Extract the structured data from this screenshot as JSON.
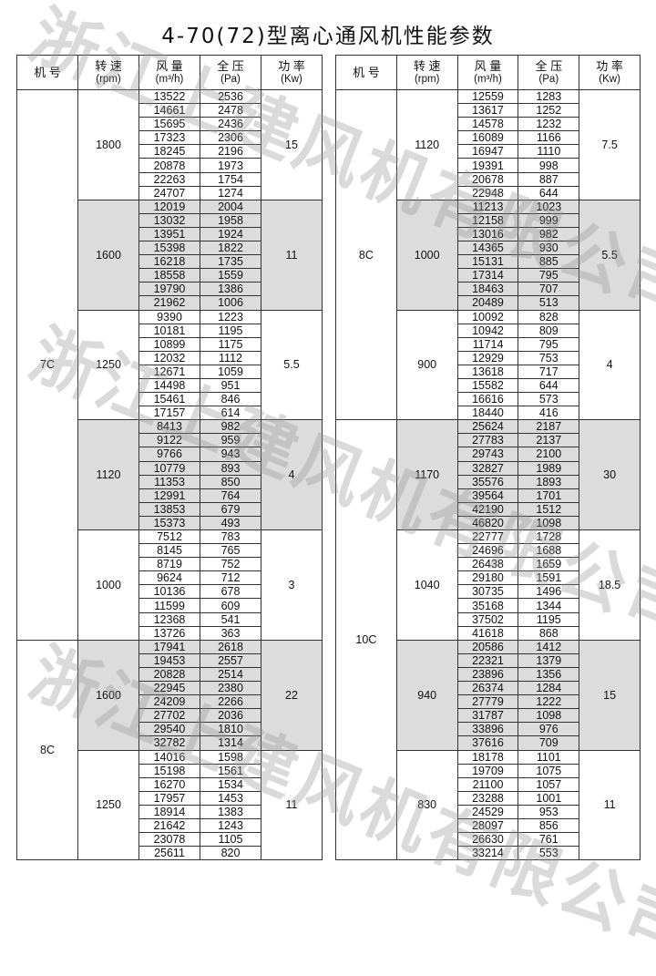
{
  "title": "4-70(72)型离心通风机性能参数",
  "watermark": "浙江上建风机有限公司",
  "headers": {
    "model": "机 号",
    "speed": "转 速",
    "speed_unit": "(rpm)",
    "flow": "风 量",
    "flow_unit": "(m³/h)",
    "pressure": "全 压",
    "pressure_unit": "(Pa)",
    "power": "功 率",
    "power_unit": "(Kw)"
  },
  "colors": {
    "shade": "#dcdcdc",
    "border": "#333333"
  },
  "tables": [
    {
      "models": [
        {
          "model": "7C",
          "speeds": [
            {
              "rpm": "1800",
              "power": "15",
              "shaded": false,
              "rows": [
                [
                  "13522",
                  "2536"
                ],
                [
                  "14661",
                  "2478"
                ],
                [
                  "15695",
                  "2436"
                ],
                [
                  "17323",
                  "2306"
                ],
                [
                  "18245",
                  "2196"
                ],
                [
                  "20878",
                  "1973"
                ],
                [
                  "22263",
                  "1754"
                ],
                [
                  "24707",
                  "1274"
                ]
              ]
            },
            {
              "rpm": "1600",
              "power": "11",
              "shaded": true,
              "rows": [
                [
                  "12019",
                  "2004"
                ],
                [
                  "13032",
                  "1958"
                ],
                [
                  "13951",
                  "1924"
                ],
                [
                  "15398",
                  "1822"
                ],
                [
                  "16218",
                  "1735"
                ],
                [
                  "18558",
                  "1559"
                ],
                [
                  "19790",
                  "1386"
                ],
                [
                  "21962",
                  "1006"
                ]
              ]
            },
            {
              "rpm": "1250",
              "power": "5.5",
              "shaded": false,
              "rows": [
                [
                  "9390",
                  "1223"
                ],
                [
                  "10181",
                  "1195"
                ],
                [
                  "10899",
                  "1175"
                ],
                [
                  "12032",
                  "1112"
                ],
                [
                  "12671",
                  "1059"
                ],
                [
                  "14498",
                  "951"
                ],
                [
                  "15461",
                  "846"
                ],
                [
                  "17157",
                  "614"
                ]
              ]
            },
            {
              "rpm": "1120",
              "power": "4",
              "shaded": true,
              "rows": [
                [
                  "8413",
                  "982"
                ],
                [
                  "9122",
                  "959"
                ],
                [
                  "9766",
                  "943"
                ],
                [
                  "10779",
                  "893"
                ],
                [
                  "11353",
                  "850"
                ],
                [
                  "12991",
                  "764"
                ],
                [
                  "13853",
                  "679"
                ],
                [
                  "15373",
                  "493"
                ]
              ]
            },
            {
              "rpm": "1000",
              "power": "3",
              "shaded": false,
              "rows": [
                [
                  "7512",
                  "783"
                ],
                [
                  "8145",
                  "765"
                ],
                [
                  "8719",
                  "752"
                ],
                [
                  "9624",
                  "712"
                ],
                [
                  "10136",
                  "678"
                ],
                [
                  "11599",
                  "609"
                ],
                [
                  "12368",
                  "541"
                ],
                [
                  "13726",
                  "363"
                ]
              ]
            }
          ]
        },
        {
          "model": "8C",
          "speeds": [
            {
              "rpm": "1600",
              "power": "22",
              "shaded": true,
              "rows": [
                [
                  "17941",
                  "2618"
                ],
                [
                  "19453",
                  "2557"
                ],
                [
                  "20828",
                  "2514"
                ],
                [
                  "22945",
                  "2380"
                ],
                [
                  "24209",
                  "2266"
                ],
                [
                  "27702",
                  "2036"
                ],
                [
                  "29540",
                  "1810"
                ],
                [
                  "32782",
                  "1314"
                ]
              ]
            },
            {
              "rpm": "1250",
              "power": "11",
              "shaded": false,
              "rows": [
                [
                  "14016",
                  "1598"
                ],
                [
                  "15198",
                  "1561"
                ],
                [
                  "16270",
                  "1534"
                ],
                [
                  "17957",
                  "1453"
                ],
                [
                  "18914",
                  "1383"
                ],
                [
                  "21642",
                  "1243"
                ],
                [
                  "23078",
                  "1105"
                ],
                [
                  "25611",
                  "820"
                ]
              ]
            }
          ]
        }
      ]
    },
    {
      "models": [
        {
          "model": "8C",
          "speeds": [
            {
              "rpm": "1120",
              "power": "7.5",
              "shaded": false,
              "rows": [
                [
                  "12559",
                  "1283"
                ],
                [
                  "13617",
                  "1252"
                ],
                [
                  "14578",
                  "1232"
                ],
                [
                  "16089",
                  "1166"
                ],
                [
                  "16947",
                  "1110"
                ],
                [
                  "19391",
                  "998"
                ],
                [
                  "20678",
                  "887"
                ],
                [
                  "22948",
                  "644"
                ]
              ]
            },
            {
              "rpm": "1000",
              "power": "5.5",
              "shaded": true,
              "rows": [
                [
                  "11213",
                  "1023"
                ],
                [
                  "12158",
                  "999"
                ],
                [
                  "13016",
                  "982"
                ],
                [
                  "14365",
                  "930"
                ],
                [
                  "15131",
                  "885"
                ],
                [
                  "17314",
                  "795"
                ],
                [
                  "18463",
                  "707"
                ],
                [
                  "20489",
                  "513"
                ]
              ]
            },
            {
              "rpm": "900",
              "power": "4",
              "shaded": false,
              "rows": [
                [
                  "10092",
                  "828"
                ],
                [
                  "10942",
                  "809"
                ],
                [
                  "11714",
                  "795"
                ],
                [
                  "12929",
                  "753"
                ],
                [
                  "13618",
                  "717"
                ],
                [
                  "15582",
                  "644"
                ],
                [
                  "16616",
                  "573"
                ],
                [
                  "18440",
                  "416"
                ]
              ]
            }
          ]
        },
        {
          "model": "10C",
          "speeds": [
            {
              "rpm": "1170",
              "power": "30",
              "shaded": true,
              "rows": [
                [
                  "25624",
                  "2187"
                ],
                [
                  "27783",
                  "2137"
                ],
                [
                  "29743",
                  "2100"
                ],
                [
                  "32827",
                  "1989"
                ],
                [
                  "35576",
                  "1893"
                ],
                [
                  "39564",
                  "1701"
                ],
                [
                  "42190",
                  "1512"
                ],
                [
                  "46820",
                  "1098"
                ]
              ]
            },
            {
              "rpm": "1040",
              "power": "18.5",
              "shaded": false,
              "rows": [
                [
                  "22777",
                  "1728"
                ],
                [
                  "24696",
                  "1688"
                ],
                [
                  "26438",
                  "1659"
                ],
                [
                  "29180",
                  "1591"
                ],
                [
                  "30735",
                  "1496"
                ],
                [
                  "35168",
                  "1344"
                ],
                [
                  "37502",
                  "1195"
                ],
                [
                  "41618",
                  "868"
                ]
              ]
            },
            {
              "rpm": "940",
              "power": "15",
              "shaded": true,
              "rows": [
                [
                  "20586",
                  "1412"
                ],
                [
                  "22321",
                  "1379"
                ],
                [
                  "23896",
                  "1356"
                ],
                [
                  "26374",
                  "1284"
                ],
                [
                  "27779",
                  "1222"
                ],
                [
                  "31787",
                  "1098"
                ],
                [
                  "33896",
                  "976"
                ],
                [
                  "37616",
                  "709"
                ]
              ]
            },
            {
              "rpm": "830",
              "power": "11",
              "shaded": false,
              "rows": [
                [
                  "18178",
                  "1101"
                ],
                [
                  "19709",
                  "1075"
                ],
                [
                  "21100",
                  "1057"
                ],
                [
                  "23288",
                  "1001"
                ],
                [
                  "24529",
                  "953"
                ],
                [
                  "28097",
                  "856"
                ],
                [
                  "26630",
                  "761"
                ],
                [
                  "33214",
                  "553"
                ]
              ]
            }
          ]
        }
      ]
    }
  ]
}
